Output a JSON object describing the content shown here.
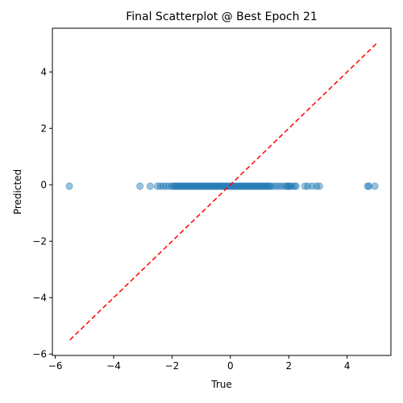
{
  "chart_data": {
    "type": "scatter",
    "title": "Final Scatterplot @ Best Epoch 21",
    "xlabel": "True",
    "ylabel": "Predicted",
    "xlim": [
      -6.1,
      5.5
    ],
    "ylim": [
      -6.05,
      5.55
    ],
    "x_ticks": [
      -6,
      -4,
      -2,
      0,
      2,
      4
    ],
    "y_ticks": [
      -6,
      -4,
      -2,
      0,
      2,
      4
    ],
    "x_tick_labels": [
      "−6",
      "−4",
      "−2",
      "0",
      "2",
      "4"
    ],
    "y_tick_labels": [
      "−6",
      "−4",
      "−2",
      "0",
      "2",
      "4"
    ],
    "grid": false,
    "point_color": "#1f77b4",
    "point_alpha": 0.45,
    "reference_line": {
      "style": "dashed",
      "color": "#ff0000",
      "from": [
        -5.5,
        -5.5
      ],
      "to": [
        5.0,
        5.0
      ]
    },
    "series": [
      {
        "points": [
          [
            -5.52,
            -0.05
          ],
          [
            -3.1,
            -0.05
          ],
          [
            -2.75,
            -0.05
          ],
          [
            -2.5,
            -0.05
          ],
          [
            -2.4,
            -0.05
          ],
          [
            -2.3,
            -0.05
          ],
          [
            -2.2,
            -0.05
          ],
          [
            -2.1,
            -0.05
          ],
          [
            -2.0,
            -0.05
          ],
          [
            -1.95,
            -0.05
          ],
          [
            -1.9,
            -0.05
          ],
          [
            -1.85,
            -0.05
          ],
          [
            -1.8,
            -0.05
          ],
          [
            -1.75,
            -0.05
          ],
          [
            -1.7,
            -0.05
          ],
          [
            -1.65,
            -0.05
          ],
          [
            -1.6,
            -0.05
          ],
          [
            -1.55,
            -0.05
          ],
          [
            -1.5,
            -0.05
          ],
          [
            -1.45,
            -0.05
          ],
          [
            -1.4,
            -0.05
          ],
          [
            -1.35,
            -0.05
          ],
          [
            -1.3,
            -0.05
          ],
          [
            -1.25,
            -0.05
          ],
          [
            -1.2,
            -0.05
          ],
          [
            -1.15,
            -0.05
          ],
          [
            -1.1,
            -0.05
          ],
          [
            -1.05,
            -0.05
          ],
          [
            -1.0,
            -0.05
          ],
          [
            -0.95,
            -0.05
          ],
          [
            -0.9,
            -0.05
          ],
          [
            -0.85,
            -0.05
          ],
          [
            -0.8,
            -0.05
          ],
          [
            -0.75,
            -0.05
          ],
          [
            -0.7,
            -0.05
          ],
          [
            -0.65,
            -0.05
          ],
          [
            -0.6,
            -0.05
          ],
          [
            -0.55,
            -0.05
          ],
          [
            -0.5,
            -0.05
          ],
          [
            -0.45,
            -0.05
          ],
          [
            -0.4,
            -0.05
          ],
          [
            -0.35,
            -0.05
          ],
          [
            -0.3,
            -0.05
          ],
          [
            -0.25,
            -0.05
          ],
          [
            -0.2,
            -0.05
          ],
          [
            -0.15,
            -0.05
          ],
          [
            -0.1,
            -0.05
          ],
          [
            -0.05,
            -0.05
          ],
          [
            0.0,
            -0.05
          ],
          [
            0.05,
            -0.05
          ],
          [
            0.1,
            -0.05
          ],
          [
            0.15,
            -0.05
          ],
          [
            0.2,
            -0.05
          ],
          [
            0.25,
            -0.05
          ],
          [
            0.3,
            -0.05
          ],
          [
            0.35,
            -0.05
          ],
          [
            0.4,
            -0.05
          ],
          [
            0.45,
            -0.05
          ],
          [
            0.5,
            -0.05
          ],
          [
            0.55,
            -0.05
          ],
          [
            0.6,
            -0.05
          ],
          [
            0.65,
            -0.05
          ],
          [
            0.7,
            -0.05
          ],
          [
            0.75,
            -0.05
          ],
          [
            0.8,
            -0.05
          ],
          [
            0.85,
            -0.05
          ],
          [
            0.9,
            -0.05
          ],
          [
            0.95,
            -0.05
          ],
          [
            1.0,
            -0.05
          ],
          [
            1.05,
            -0.05
          ],
          [
            1.1,
            -0.05
          ],
          [
            1.15,
            -0.05
          ],
          [
            1.2,
            -0.05
          ],
          [
            1.25,
            -0.05
          ],
          [
            1.3,
            -0.05
          ],
          [
            1.35,
            -0.05
          ],
          [
            1.4,
            -0.05
          ],
          [
            1.5,
            -0.05
          ],
          [
            1.6,
            -0.05
          ],
          [
            1.7,
            -0.05
          ],
          [
            1.8,
            -0.05
          ],
          [
            1.9,
            -0.05
          ],
          [
            1.95,
            -0.05
          ],
          [
            2.0,
            -0.05
          ],
          [
            2.05,
            -0.05
          ],
          [
            2.1,
            -0.05
          ],
          [
            2.2,
            -0.05
          ],
          [
            2.25,
            -0.05
          ],
          [
            2.55,
            -0.05
          ],
          [
            2.65,
            -0.05
          ],
          [
            2.8,
            -0.05
          ],
          [
            2.95,
            -0.05
          ],
          [
            3.05,
            -0.05
          ],
          [
            4.7,
            -0.05
          ],
          [
            4.75,
            -0.05
          ],
          [
            4.95,
            -0.05
          ]
        ]
      }
    ]
  }
}
